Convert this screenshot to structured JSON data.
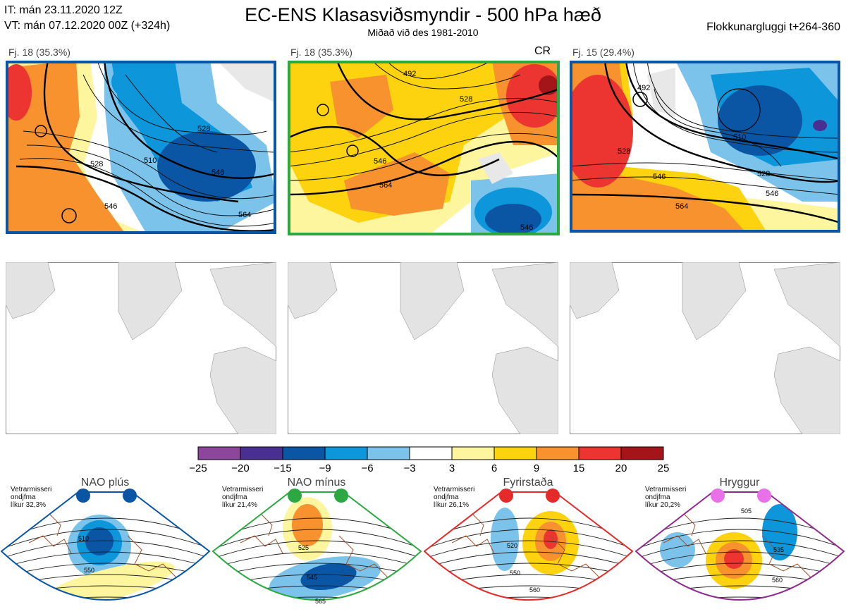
{
  "header": {
    "init_time": "IT: mán 23.11.2020 12Z",
    "valid_time": "VT: mán 07.12.2020 00Z  (+324h)",
    "title": "EC-ENS Klasasviðsmyndir - 500 hPa hæð",
    "subtitle": "Miðað við des 1981-2010",
    "window": "Flokkunargluggi t+264-360"
  },
  "panels": [
    {
      "label": "Fj. 18 (35.3%)",
      "tag": "",
      "border_color": "#0b56a4",
      "contours": [
        {
          "text": "528"
        },
        {
          "text": "510"
        },
        {
          "text": "546"
        },
        {
          "text": "546"
        },
        {
          "text": "564"
        },
        {
          "text": "528"
        }
      ]
    },
    {
      "label": "Fj. 18 (35.3%)",
      "tag": "CR",
      "border_color": "#2ca842",
      "contours": [
        {
          "text": "492"
        },
        {
          "text": "528"
        },
        {
          "text": "546"
        },
        {
          "text": "564"
        },
        {
          "text": "546"
        }
      ]
    },
    {
      "label": "Fj. 15 (29.4%)",
      "tag": "",
      "border_color": "#0b56a4",
      "contours": [
        {
          "text": "492"
        },
        {
          "text": "510"
        },
        {
          "text": "528"
        },
        {
          "text": "546"
        },
        {
          "text": "528"
        },
        {
          "text": "546"
        },
        {
          "text": "564"
        }
      ]
    }
  ],
  "colorbar": {
    "ticks": [
      "−25",
      "−20",
      "−15",
      "−9",
      "−6",
      "−3",
      "3",
      "6",
      "9",
      "15",
      "20",
      "25"
    ],
    "colors": [
      "#8c479d",
      "#4a2f92",
      "#0b56a4",
      "#0e96da",
      "#7cc3ec",
      "#ffffff",
      "#fef59f",
      "#fdd20f",
      "#f7922e",
      "#ec3530",
      "#a31518"
    ]
  },
  "regimes": [
    {
      "name": "NAO plús",
      "note_line1": "Vetrarmisseri",
      "note_line2": "ondjfma",
      "note_line3": "líkur 32,3%",
      "color": "#0b56a4",
      "dot_color": "#0b56a4",
      "contours": [
        {
          "text": "510"
        },
        {
          "text": "550"
        }
      ]
    },
    {
      "name": "NAO mínus",
      "note_line1": "Vetrarmisseri",
      "note_line2": "ondjfma",
      "note_line3": "líkur 21,4%",
      "color": "#2ca842",
      "dot_color": "#2ca842",
      "contours": [
        {
          "text": "525"
        },
        {
          "text": "545"
        },
        {
          "text": "565"
        }
      ]
    },
    {
      "name": "Fyrirstaða",
      "note_line1": "Vetrarmisseri",
      "note_line2": "ondjfma",
      "note_line3": "líkur 26,1%",
      "color": "#e52a2a",
      "dot_color": "#e52a2a",
      "contours": [
        {
          "text": "520"
        },
        {
          "text": "550"
        },
        {
          "text": "560"
        }
      ]
    },
    {
      "name": "Hryggur",
      "note_line1": "Vetrarmisseri",
      "note_line2": "ondjfma",
      "note_line3": "líkur 20,2%",
      "color": "#8e2c8e",
      "dot_color": "#e870e8",
      "contours": [
        {
          "text": "505"
        },
        {
          "text": "535"
        },
        {
          "text": "560"
        }
      ]
    }
  ]
}
